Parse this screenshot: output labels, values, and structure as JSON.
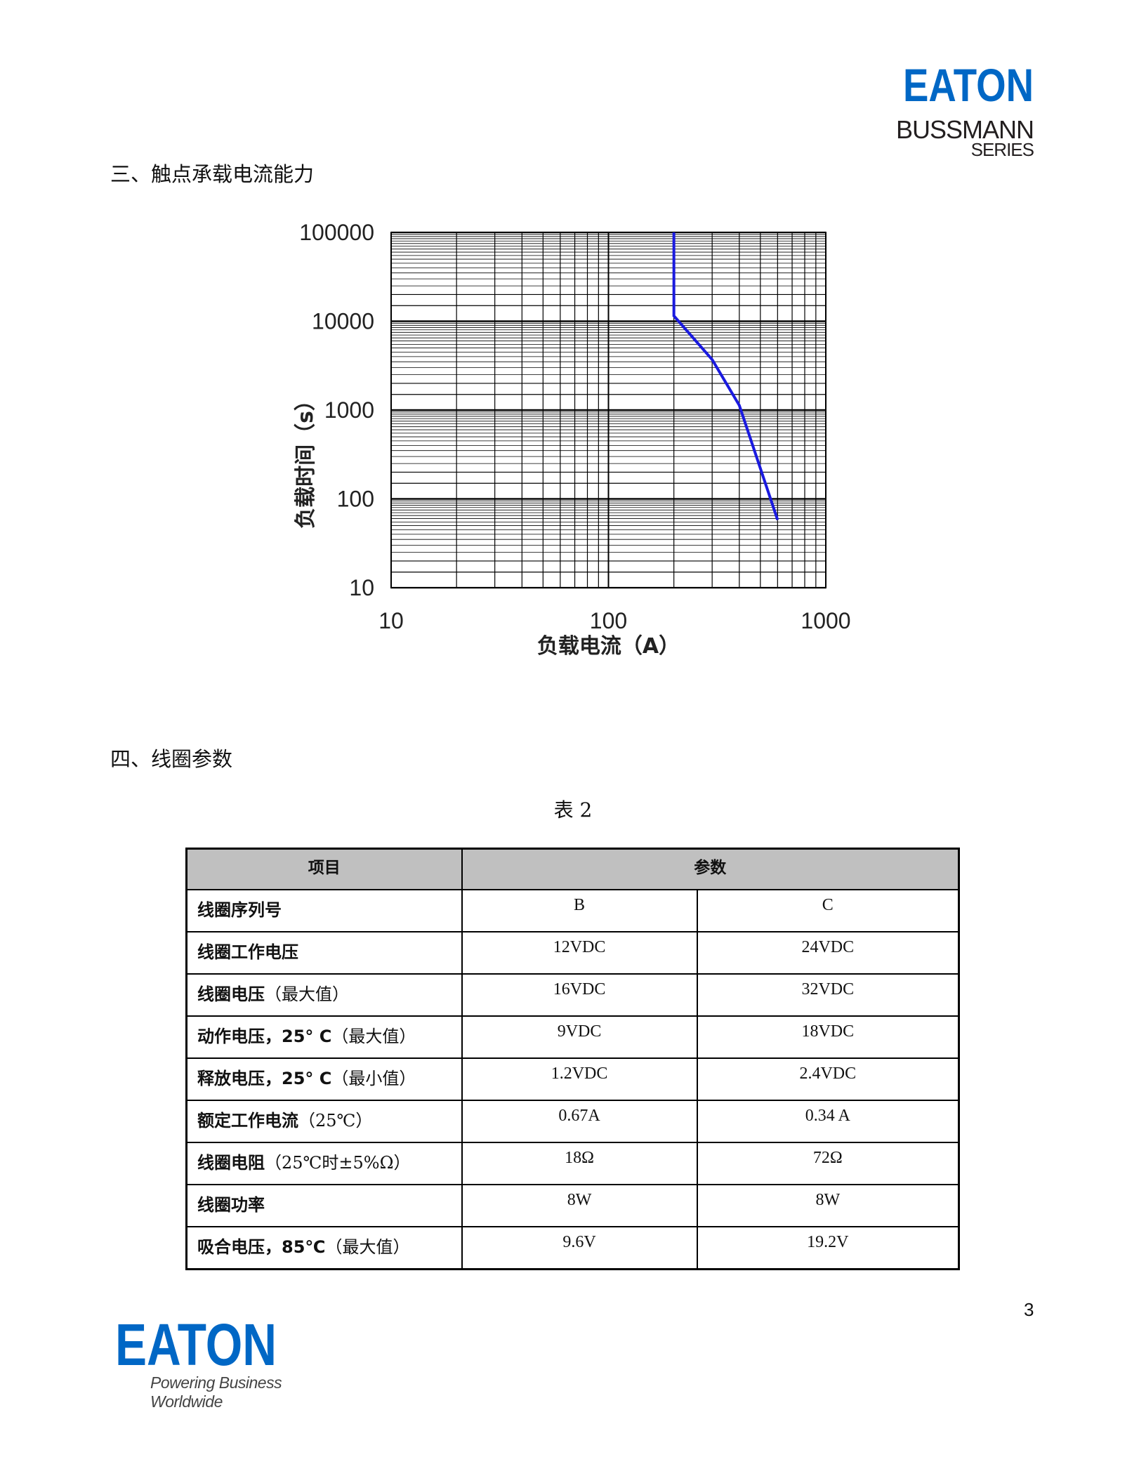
{
  "header_logo": {
    "brand": "EATON",
    "line1": "BUSSMANN",
    "line2": "SERIES",
    "color": "#0067c5"
  },
  "section3": {
    "title": "三、触点承载电流能力"
  },
  "chart_data": {
    "type": "line",
    "title": "",
    "xlabel": "负载电流（A）",
    "ylabel": "负载时间（s）",
    "xscale": "log",
    "yscale": "log",
    "xlim": [
      10,
      1000
    ],
    "ylim": [
      10,
      100000
    ],
    "xticks": [
      "10",
      "100",
      "1000"
    ],
    "yticks": [
      "10",
      "100",
      "1000",
      "10000",
      "100000"
    ],
    "grid": true,
    "line_color": "#1a1adf",
    "series": [
      {
        "x": [
          200,
          200,
          300,
          400,
          600
        ],
        "y": [
          100000,
          11500,
          3700,
          1130,
          58
        ]
      }
    ]
  },
  "section4": {
    "title": "四、线圈参数"
  },
  "table": {
    "caption": "表 2",
    "headers": [
      "项目",
      "参数"
    ],
    "rows": [
      {
        "bold": "线圈序列号",
        "note": "",
        "b": "B",
        "c": "C"
      },
      {
        "bold": "线圈工作电压",
        "note": "",
        "b": "12VDC",
        "c": "24VDC"
      },
      {
        "bold": "线圈电压",
        "note": "（最大值）",
        "b": "16VDC",
        "c": "32VDC"
      },
      {
        "bold": "动作电压，25° C",
        "note": "（最大值）",
        "b": "9VDC",
        "c": "18VDC"
      },
      {
        "bold": "释放电压，25° C",
        "note": "（最小值）",
        "b": "1.2VDC",
        "c": "2.4VDC"
      },
      {
        "bold": "额定工作电流",
        "note": "（25℃）",
        "b": "0.67A",
        "c": "0.34 A"
      },
      {
        "bold": "线圈电阻",
        "note": "（25℃时±5%Ω）",
        "b": "18Ω",
        "c": "72Ω"
      },
      {
        "bold": "线圈功率",
        "note": "",
        "b": "8W",
        "c": "8W"
      },
      {
        "bold": "吸合电压，85℃",
        "note": "（最大值）",
        "b": "9.6V",
        "c": "19.2V"
      }
    ]
  },
  "page_number": "3",
  "footer_logo": {
    "brand": "EATON",
    "tagline": "Powering Business Worldwide",
    "color": "#0067c5"
  }
}
